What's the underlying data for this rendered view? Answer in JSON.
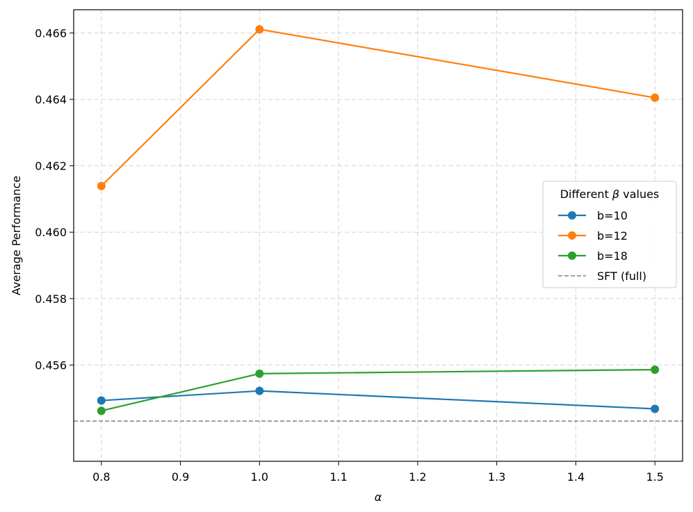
{
  "chart_data": {
    "type": "line",
    "xlabel": "α",
    "ylabel": "Average Performance",
    "xlim": [
      0.765,
      1.535
    ],
    "ylim": [
      0.4531,
      0.4667
    ],
    "grid": true,
    "x_ticks": [
      "0.8",
      "0.9",
      "1.0",
      "1.1",
      "1.2",
      "1.3",
      "1.4",
      "1.5"
    ],
    "y_ticks": [
      "0.456",
      "0.458",
      "0.460",
      "0.462",
      "0.464",
      "0.466"
    ],
    "x": [
      0.8,
      1.0,
      1.5
    ],
    "series": [
      {
        "name": "b=10",
        "color": "#1f77b4",
        "values": [
          0.45493,
          0.45522,
          0.45468
        ]
      },
      {
        "name": "b=12",
        "color": "#ff7f0e",
        "values": [
          0.46139,
          0.46611,
          0.46405
        ]
      },
      {
        "name": "b=18",
        "color": "#2ca02c",
        "values": [
          0.45462,
          0.45574,
          0.45586
        ]
      }
    ],
    "reference_line": {
      "name": "SFT (full)",
      "color": "#808080",
      "style": "dashed",
      "value": 0.45431
    },
    "legend": {
      "title_prefix": "Different ",
      "title_symbol": "β",
      "title_suffix": " values",
      "placement": "center-right"
    }
  }
}
